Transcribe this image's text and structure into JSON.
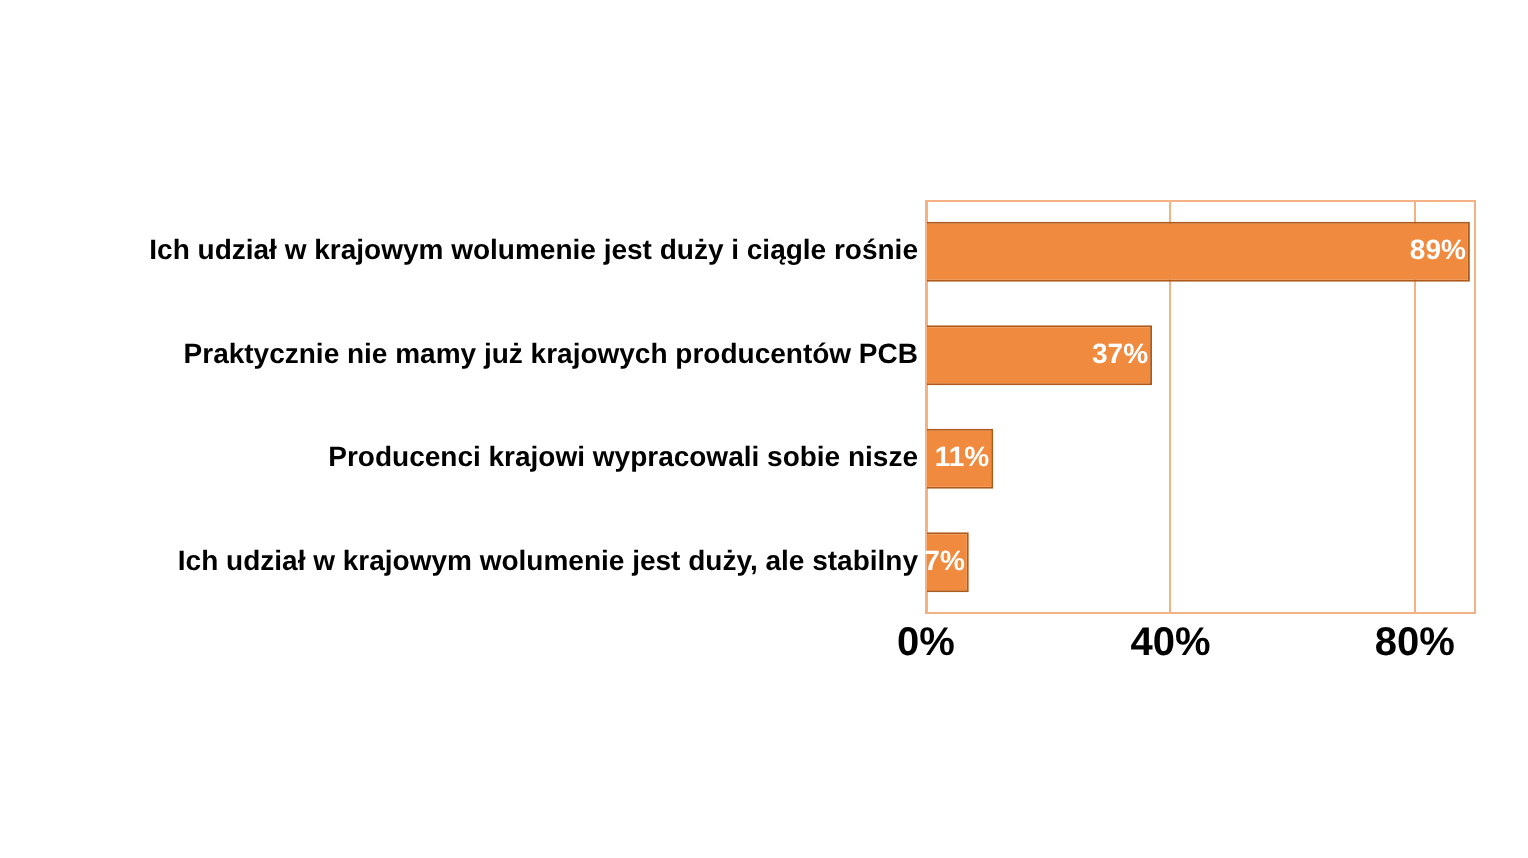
{
  "chart_data": {
    "type": "bar",
    "orientation": "horizontal",
    "categories": [
      "Ich udział w krajowym wolumenie jest duży i ciągle rośnie",
      "Praktycznie nie mamy już krajowych producentów PCB",
      "Producenci krajowi wypracowali sobie nisze",
      "Ich udział w krajowym wolumenie jest duży, ale stabilny"
    ],
    "values": [
      89,
      37,
      11,
      7
    ],
    "value_labels": [
      "89%",
      "37%",
      "11%",
      "7%"
    ],
    "color": "#f08a3e",
    "xlim": [
      0,
      90
    ],
    "xticks": [
      {
        "value": 0,
        "label": "0%"
      },
      {
        "value": 40,
        "label": "40%"
      },
      {
        "value": 80,
        "label": "80%"
      }
    ],
    "grid": "x",
    "legend": false
  }
}
